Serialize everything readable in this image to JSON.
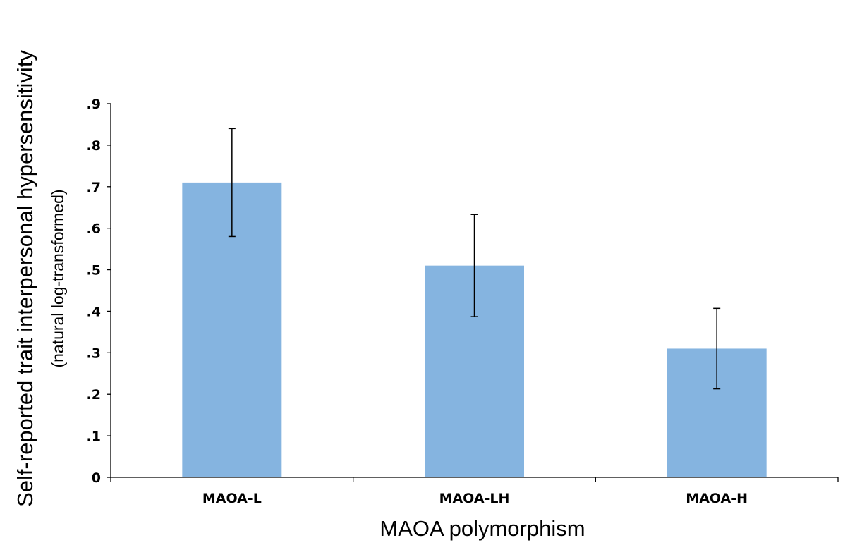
{
  "chart_data": {
    "type": "bar",
    "categories": [
      "MAOA-L",
      "MAOA-LH",
      "MAOA-H"
    ],
    "values": [
      0.71,
      0.51,
      0.31
    ],
    "error": [
      0.13,
      0.123,
      0.097
    ],
    "bar_color": "#85B4E0",
    "xlabel": "MAOA polymorphism",
    "ylabel": "Self-reported trait interpersonal hypersensitivity",
    "ylabel_sub": "(natural log-transformed)",
    "ylim": [
      0,
      0.9
    ],
    "yticks": [
      {
        "value": 0,
        "label": "0"
      },
      {
        "value": 0.1,
        "label": ".1"
      },
      {
        "value": 0.2,
        "label": ".2"
      },
      {
        "value": 0.3,
        "label": ".3"
      },
      {
        "value": 0.4,
        "label": ".4"
      },
      {
        "value": 0.5,
        "label": ".5"
      },
      {
        "value": 0.6,
        "label": ".6"
      },
      {
        "value": 0.7,
        "label": ".7"
      },
      {
        "value": 0.8,
        "label": ".8"
      },
      {
        "value": 0.9,
        "label": ".9"
      }
    ],
    "grid": false,
    "legend": "none"
  }
}
